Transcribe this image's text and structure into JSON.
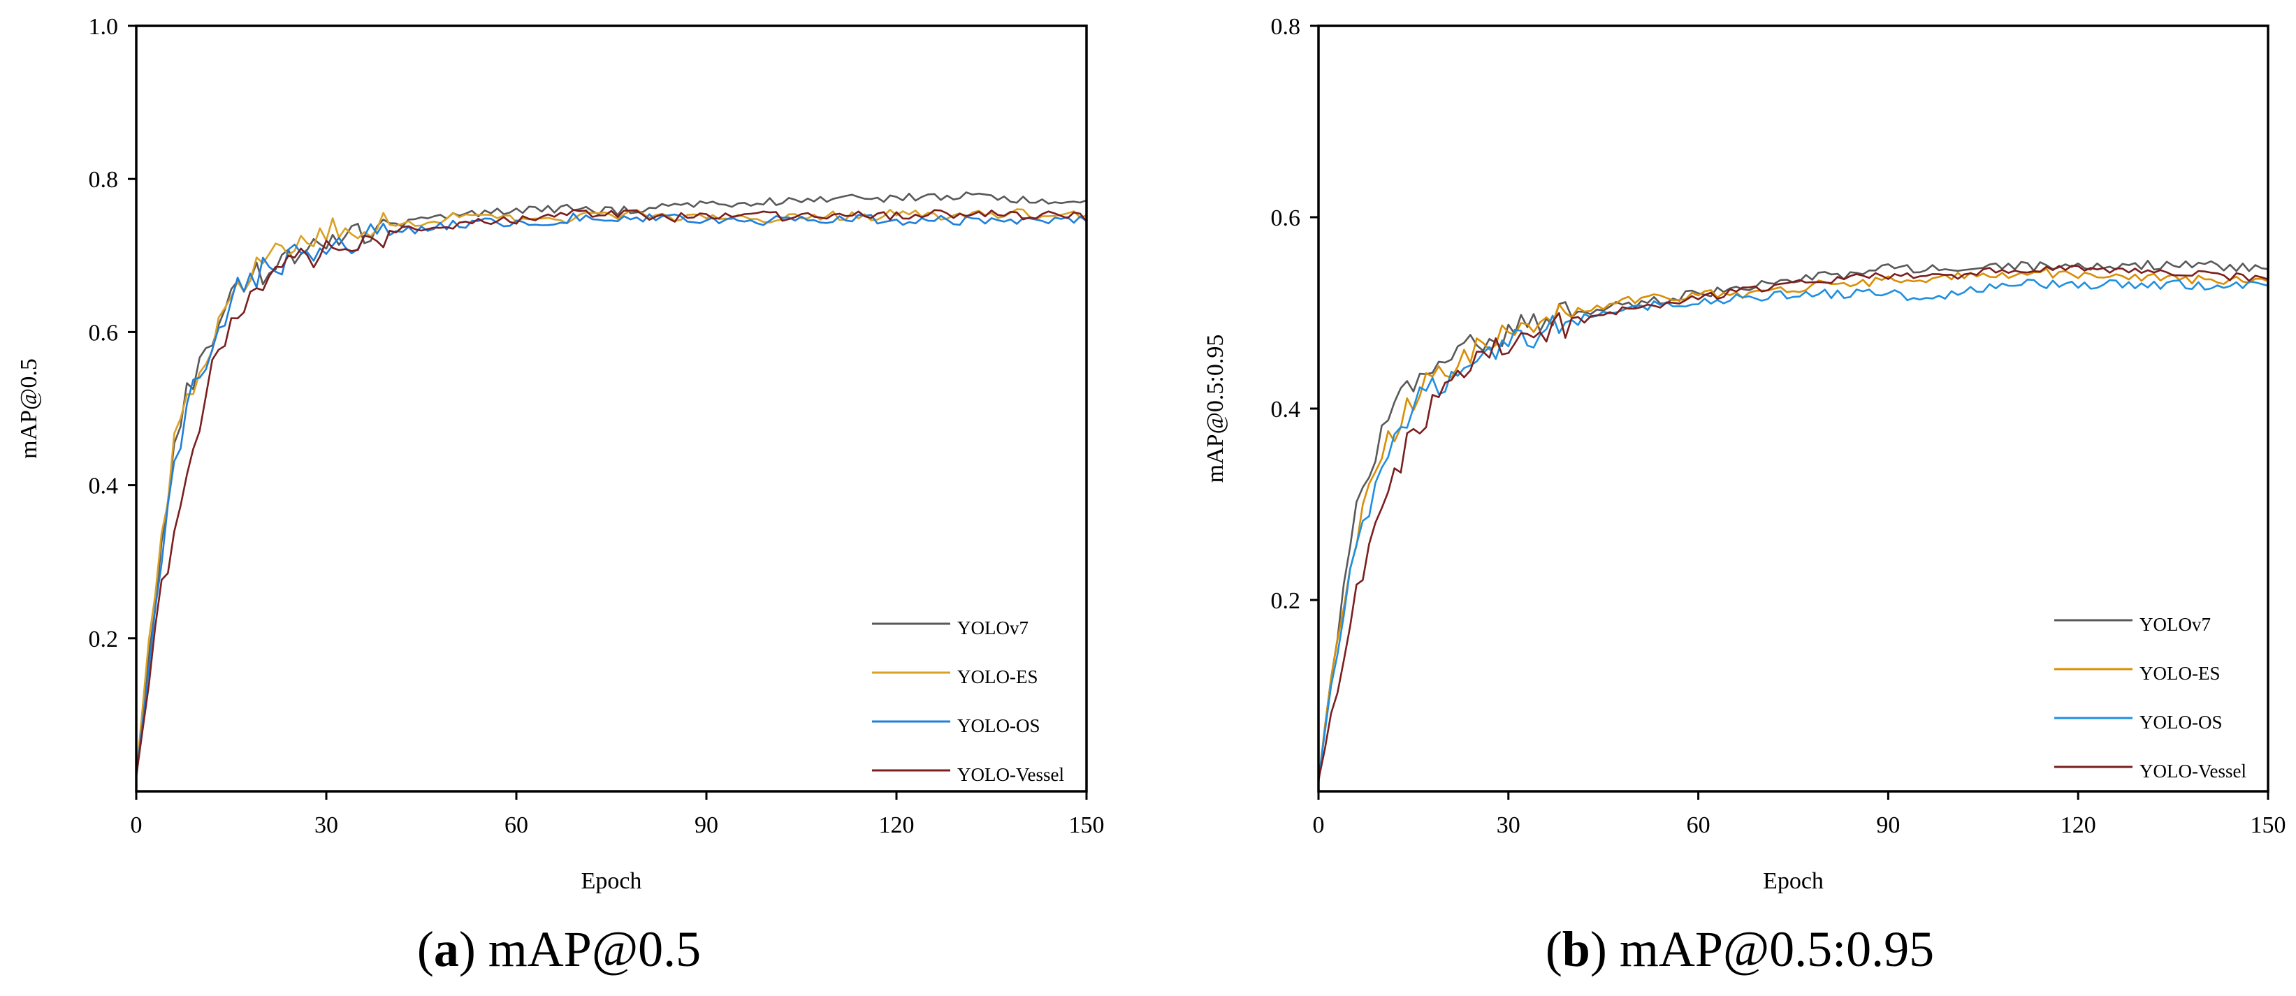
{
  "chart_data": [
    {
      "type": "line",
      "id": "a",
      "caption_letter": "a",
      "caption_text": "mAP@0.5",
      "xlabel": "Epoch",
      "ylabel": "mAP@0.5",
      "xlim": [
        0,
        150
      ],
      "ylim": [
        0.0,
        1.0
      ],
      "xticks": [
        0,
        30,
        60,
        90,
        120,
        150
      ],
      "yticks": [
        0.2,
        0.4,
        0.6,
        0.8,
        1.0
      ],
      "ytick_labels": [
        "0.2",
        "0.4",
        "0.6",
        "0.8",
        "1.0"
      ],
      "legend_position": "bottom-right",
      "x": [
        0,
        2,
        4,
        6,
        8,
        10,
        12,
        14,
        16,
        18,
        20,
        25,
        30,
        35,
        40,
        45,
        50,
        55,
        60,
        65,
        70,
        75,
        80,
        85,
        90,
        95,
        100,
        105,
        110,
        115,
        120,
        125,
        130,
        135,
        140,
        145,
        150
      ],
      "series": [
        {
          "name": "YOLOv7",
          "color": "#595959",
          "values": [
            0.02,
            0.18,
            0.32,
            0.44,
            0.52,
            0.56,
            0.6,
            0.63,
            0.65,
            0.67,
            0.68,
            0.7,
            0.72,
            0.73,
            0.74,
            0.745,
            0.75,
            0.755,
            0.76,
            0.762,
            0.76,
            0.758,
            0.76,
            0.765,
            0.77,
            0.765,
            0.77,
            0.772,
            0.775,
            0.773,
            0.775,
            0.776,
            0.777,
            0.775,
            0.774,
            0.772,
            0.77
          ]
        },
        {
          "name": "YOLO-ES",
          "color": "#D9A024",
          "values": [
            0.02,
            0.2,
            0.34,
            0.45,
            0.51,
            0.55,
            0.59,
            0.62,
            0.65,
            0.67,
            0.69,
            0.72,
            0.73,
            0.735,
            0.74,
            0.745,
            0.75,
            0.75,
            0.748,
            0.745,
            0.75,
            0.752,
            0.755,
            0.75,
            0.752,
            0.75,
            0.748,
            0.75,
            0.752,
            0.75,
            0.755,
            0.752,
            0.75,
            0.755,
            0.755,
            0.75,
            0.755
          ]
        },
        {
          "name": "YOLO-OS",
          "color": "#1F7FDB",
          "values": [
            0.02,
            0.16,
            0.3,
            0.42,
            0.5,
            0.55,
            0.58,
            0.62,
            0.66,
            0.67,
            0.68,
            0.7,
            0.71,
            0.72,
            0.73,
            0.735,
            0.74,
            0.745,
            0.74,
            0.745,
            0.75,
            0.748,
            0.75,
            0.748,
            0.745,
            0.748,
            0.745,
            0.748,
            0.745,
            0.748,
            0.745,
            0.748,
            0.745,
            0.748,
            0.745,
            0.745,
            0.745
          ]
        },
        {
          "name": "YOLO-Vessel",
          "color": "#7B1E1E",
          "values": [
            0.02,
            0.14,
            0.26,
            0.34,
            0.42,
            0.48,
            0.55,
            0.59,
            0.62,
            0.65,
            0.66,
            0.69,
            0.71,
            0.72,
            0.73,
            0.735,
            0.74,
            0.745,
            0.745,
            0.75,
            0.755,
            0.755,
            0.752,
            0.75,
            0.752,
            0.75,
            0.752,
            0.75,
            0.752,
            0.755,
            0.752,
            0.755,
            0.755,
            0.755,
            0.752,
            0.752,
            0.75
          ]
        }
      ]
    },
    {
      "type": "line",
      "id": "b",
      "caption_letter": "b",
      "caption_text": "mAP@0.5:0.95",
      "xlabel": "Epoch",
      "ylabel": "mAP@0.5:0.95",
      "xlim": [
        0,
        150
      ],
      "ylim": [
        0.0,
        0.8
      ],
      "xticks": [
        0,
        30,
        60,
        90,
        120,
        150
      ],
      "yticks": [
        0.2,
        0.4,
        0.6,
        0.8
      ],
      "ytick_labels": [
        "0.2",
        "0.4",
        "0.6",
        "0.8"
      ],
      "legend_position": "bottom-right",
      "x": [
        0,
        2,
        4,
        6,
        8,
        10,
        12,
        14,
        16,
        18,
        20,
        25,
        30,
        35,
        40,
        45,
        50,
        55,
        60,
        65,
        70,
        75,
        80,
        85,
        90,
        95,
        100,
        105,
        110,
        115,
        120,
        125,
        130,
        135,
        140,
        145,
        150
      ],
      "series": [
        {
          "name": "YOLOv7",
          "color": "#595959",
          "values": [
            0.01,
            0.12,
            0.22,
            0.3,
            0.34,
            0.37,
            0.4,
            0.42,
            0.44,
            0.45,
            0.455,
            0.47,
            0.48,
            0.495,
            0.5,
            0.505,
            0.51,
            0.515,
            0.52,
            0.525,
            0.53,
            0.535,
            0.538,
            0.54,
            0.548,
            0.545,
            0.548,
            0.547,
            0.55,
            0.548,
            0.55,
            0.549,
            0.55,
            0.549,
            0.55,
            0.548,
            0.548
          ]
        },
        {
          "name": "YOLO-ES",
          "color": "#D98E04",
          "values": [
            0.01,
            0.12,
            0.2,
            0.27,
            0.31,
            0.35,
            0.38,
            0.4,
            0.42,
            0.43,
            0.44,
            0.465,
            0.48,
            0.49,
            0.5,
            0.505,
            0.515,
            0.515,
            0.52,
            0.52,
            0.52,
            0.525,
            0.53,
            0.53,
            0.535,
            0.535,
            0.538,
            0.54,
            0.54,
            0.542,
            0.54,
            0.538,
            0.538,
            0.536,
            0.535,
            0.535,
            0.535
          ]
        },
        {
          "name": "YOLO-OS",
          "color": "#1F8FE0",
          "values": [
            0.01,
            0.11,
            0.19,
            0.25,
            0.29,
            0.33,
            0.36,
            0.39,
            0.41,
            0.42,
            0.43,
            0.45,
            0.47,
            0.48,
            0.49,
            0.5,
            0.505,
            0.51,
            0.51,
            0.515,
            0.515,
            0.52,
            0.52,
            0.52,
            0.52,
            0.515,
            0.52,
            0.525,
            0.53,
            0.53,
            0.53,
            0.53,
            0.528,
            0.53,
            0.528,
            0.53,
            0.528
          ]
        },
        {
          "name": "YOLO-Vessel",
          "color": "#7B1E1E",
          "values": [
            0.01,
            0.08,
            0.15,
            0.21,
            0.26,
            0.3,
            0.33,
            0.36,
            0.38,
            0.4,
            0.42,
            0.45,
            0.47,
            0.48,
            0.49,
            0.5,
            0.505,
            0.51,
            0.515,
            0.52,
            0.525,
            0.53,
            0.535,
            0.538,
            0.54,
            0.54,
            0.54,
            0.542,
            0.545,
            0.545,
            0.545,
            0.545,
            0.542,
            0.54,
            0.54,
            0.538,
            0.535
          ]
        }
      ]
    }
  ]
}
